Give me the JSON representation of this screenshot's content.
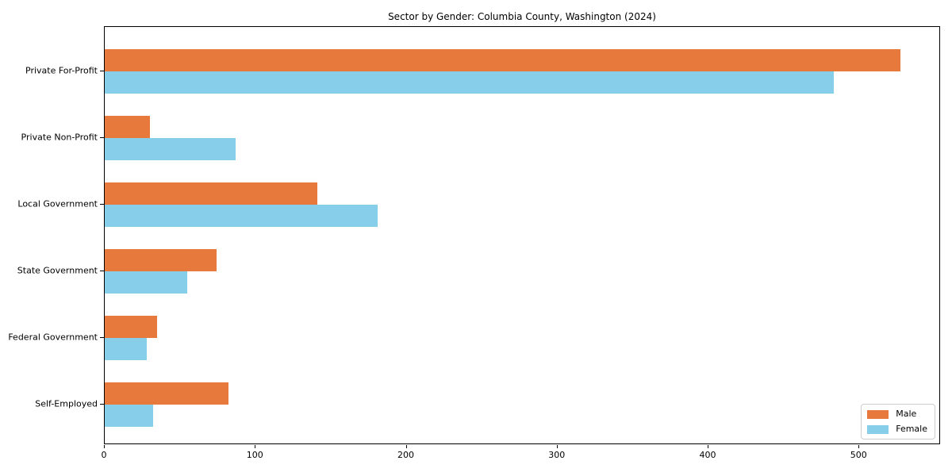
{
  "chart_data": {
    "type": "bar",
    "orientation": "horizontal",
    "title": "Sector by Gender: Columbia County, Washington (2024)",
    "categories": [
      "Private For-Profit",
      "Private Non-Profit",
      "Local Government",
      "State Government",
      "Federal Government",
      "Self-Employed"
    ],
    "series": [
      {
        "name": "Male",
        "color": "#e8793d",
        "values": [
          528,
          30,
          141,
          74,
          35,
          82
        ]
      },
      {
        "name": "Female",
        "color": "#87ceeb",
        "values": [
          484,
          87,
          181,
          55,
          28,
          32
        ]
      }
    ],
    "xlabel": "",
    "ylabel": "",
    "xlim": [
      0,
      554
    ],
    "xticks": [
      0,
      100,
      200,
      300,
      400,
      500
    ],
    "grid": false,
    "legend_position": "lower right",
    "axis_color": "#000000",
    "background_color": "#ffffff"
  }
}
